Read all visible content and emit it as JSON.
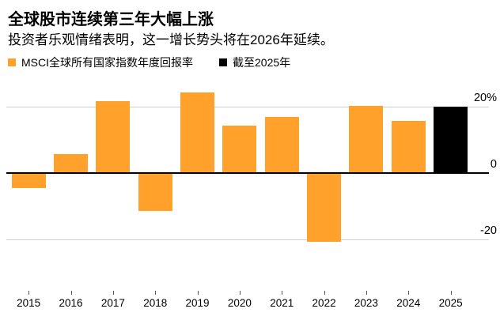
{
  "header": {
    "title": "全球股市连续第三年大幅上涨",
    "subtitle": "投资者乐观情绪表明，这一增长势头将在2026年延续。"
  },
  "legend": {
    "items": [
      {
        "label": "MSCI全球所有国家指数年度回报率",
        "color": "#FFA12B",
        "swatch": "orange-square"
      },
      {
        "label": "截至2025年",
        "color": "#000000",
        "swatch": "black-square"
      }
    ]
  },
  "chart_data": {
    "type": "bar",
    "categories": [
      "2015",
      "2016",
      "2017",
      "2018",
      "2019",
      "2020",
      "2021",
      "2022",
      "2023",
      "2024",
      "2025"
    ],
    "series": [
      {
        "name": "MSCI全球所有国家指数年度回报率",
        "color": "#FFA12B",
        "values": [
          -4.3,
          5.6,
          21.6,
          -11.2,
          24.1,
          14.3,
          16.8,
          -20.3,
          20.1,
          15.7,
          null
        ]
      },
      {
        "name": "截至2025年",
        "color": "#000000",
        "values": [
          null,
          null,
          null,
          null,
          null,
          null,
          null,
          null,
          null,
          null,
          20.0
        ]
      }
    ],
    "unit": "%",
    "yticks": [
      {
        "value": 20,
        "label": "20%"
      },
      {
        "value": 0,
        "label": "0"
      },
      {
        "value": -20,
        "label": "-20"
      }
    ],
    "ylim": [
      -24,
      28
    ],
    "grid": "horizontal",
    "y_axis_side": "right",
    "legend_position": "top",
    "baseline": 0
  }
}
